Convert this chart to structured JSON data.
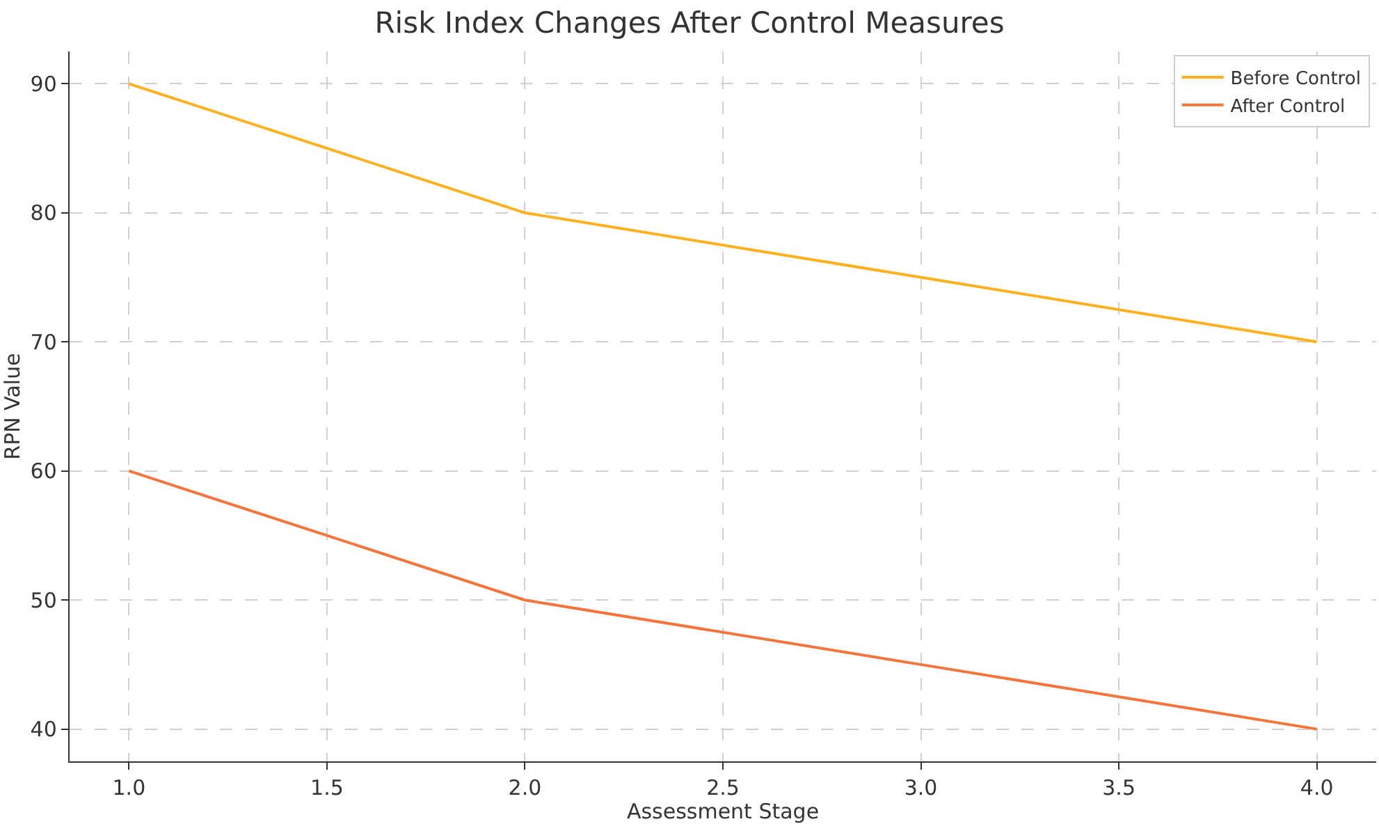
{
  "chart_data": {
    "type": "line",
    "title": "Risk Index Changes After Control Measures",
    "xlabel": "Assessment Stage",
    "ylabel": "RPN Value",
    "x": [
      1,
      2,
      3,
      4
    ],
    "series": [
      {
        "name": "Before Control",
        "color": "#ffb01f",
        "values": [
          90,
          80,
          75,
          70
        ]
      },
      {
        "name": "After Control",
        "color": "#f4743b",
        "values": [
          60,
          50,
          45,
          40
        ]
      }
    ],
    "xlim": [
      0.85,
      4.15
    ],
    "xticks": [
      {
        "value": 1,
        "label": "1.0"
      },
      {
        "value": 1.5,
        "label": "1.5"
      },
      {
        "value": 2,
        "label": "2.0"
      },
      {
        "value": 2.5,
        "label": "2.5"
      },
      {
        "value": 3,
        "label": "3.0"
      },
      {
        "value": 3.5,
        "label": "3.5"
      },
      {
        "value": 4,
        "label": "4.0"
      }
    ],
    "ylim": [
      37.5,
      92.5
    ],
    "yticks": [
      40,
      50,
      60,
      70,
      80,
      90
    ],
    "grid": true,
    "legend": "top right",
    "marker": "none",
    "line_style": "solid"
  }
}
